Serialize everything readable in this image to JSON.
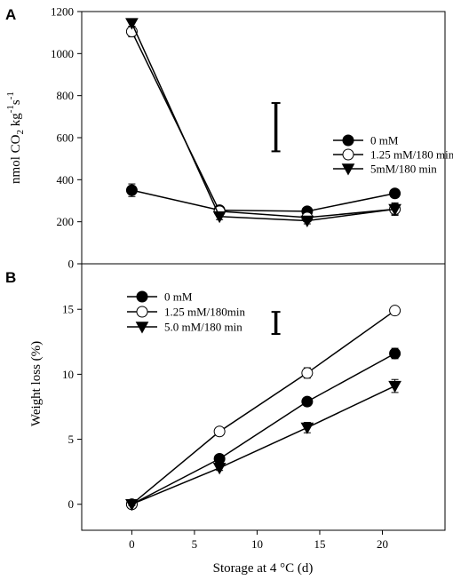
{
  "figure": {
    "xlabel": "Storage at 4 °C (d)"
  },
  "chart_data": [
    {
      "panel": "A",
      "type": "line",
      "title": "",
      "ylabel_main": "nmol CO",
      "ylabel_sub": "2",
      "ylabel_after": " kg",
      "ylabel_sup1": "-1",
      "ylabel_s": "s",
      "ylabel_sup2": "-1",
      "xlim": [
        -4,
        25
      ],
      "ylim": [
        0,
        1200
      ],
      "yticks": [
        0,
        200,
        400,
        600,
        800,
        1000,
        1200
      ],
      "x": [
        0,
        7,
        14,
        21
      ],
      "series": [
        {
          "name": "0 mM",
          "marker": "filled-circle",
          "values": [
            350,
            255,
            250,
            335
          ],
          "err": [
            30,
            10,
            10,
            10
          ]
        },
        {
          "name": "1.25 mM/180 min",
          "marker": "open-circle",
          "values": [
            1105,
            250,
            220,
            260
          ],
          "err": [
            25,
            10,
            10,
            25
          ]
        },
        {
          "name": "5mM/180 min",
          "marker": "filled-triangle",
          "values": [
            1145,
            225,
            205,
            260
          ],
          "err": [
            15,
            15,
            15,
            30
          ]
        }
      ],
      "lsd_bar": {
        "x": 11.5,
        "low": 535,
        "high": 765
      },
      "legend_position": "center-right"
    },
    {
      "panel": "B",
      "type": "line",
      "title": "",
      "ylabel": "Weight loss (%)",
      "xlim": [
        -4,
        25
      ],
      "ylim": [
        -2,
        18.5
      ],
      "yticks": [
        0,
        5,
        10,
        15
      ],
      "xticks": [
        0,
        5,
        10,
        15,
        20
      ],
      "x": [
        0,
        7,
        14,
        21
      ],
      "series": [
        {
          "name": "0 mM",
          "marker": "filled-circle",
          "values": [
            0,
            3.5,
            7.9,
            11.6
          ],
          "err": [
            0.1,
            0.2,
            0.3,
            0.4
          ]
        },
        {
          "name": "1.25 mM/180min",
          "marker": "open-circle",
          "values": [
            0,
            5.6,
            10.1,
            14.9
          ],
          "err": [
            0.1,
            0.2,
            0.4,
            0.2
          ]
        },
        {
          "name": "5.0 mM/180 min",
          "marker": "filled-triangle",
          "values": [
            0,
            2.8,
            5.9,
            9.1
          ],
          "err": [
            0.1,
            0.2,
            0.4,
            0.5
          ]
        }
      ],
      "lsd_bar": {
        "x": 11.5,
        "low": 13.1,
        "high": 14.8
      },
      "legend_position": "top-left"
    }
  ]
}
